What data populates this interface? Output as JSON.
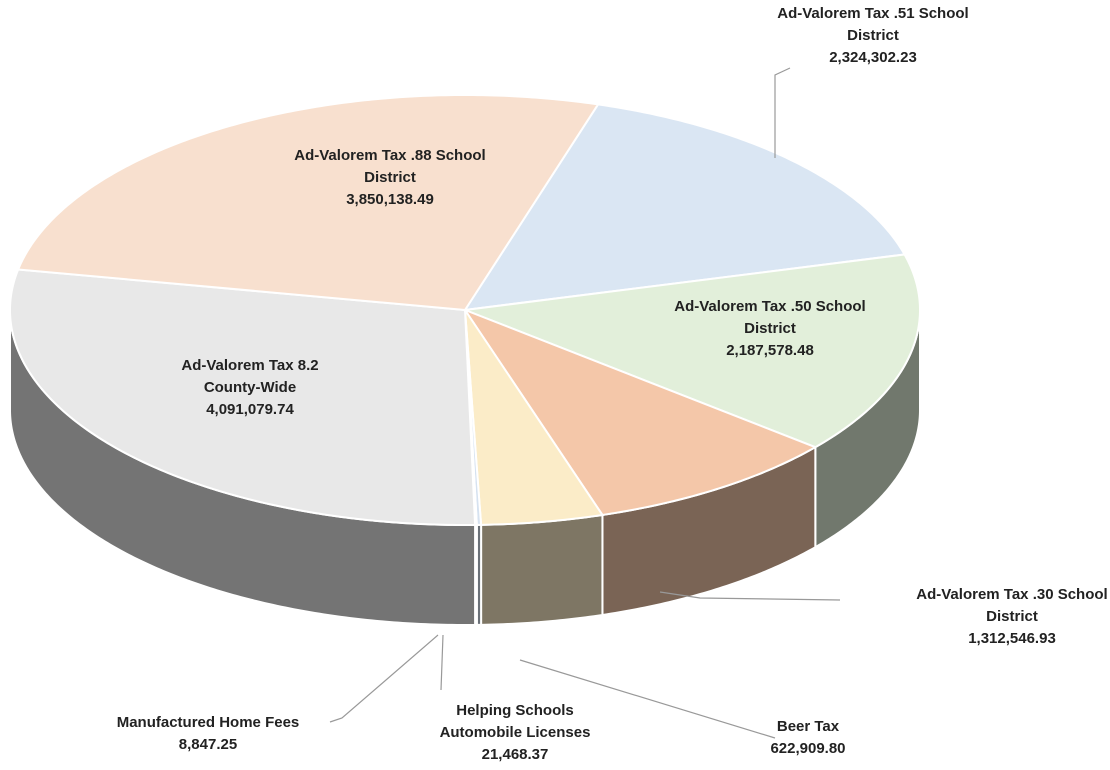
{
  "chart_data": {
    "type": "pie",
    "categories": [
      "Ad-Valorem Tax .51 School District",
      "Ad-Valorem Tax .50 School District",
      "Ad-Valorem Tax .30 School District",
      "Beer Tax",
      "Helping Schools Automobile Licenses",
      "Manufactured Home Fees",
      "Ad-Valorem Tax 8.2 County-Wide",
      "Ad-Valorem Tax .88 School District"
    ],
    "values": [
      2324302.23,
      2187578.48,
      1312546.93,
      622909.8,
      21468.37,
      8847.25,
      4091079.74,
      3850138.49
    ],
    "value_labels": [
      "2,324,302.23",
      "2,187,578.48",
      "1,312,546.93",
      "622,909.80",
      "21,468.37",
      "8,847.25",
      "4,091,079.74",
      "3,850,138.49"
    ],
    "colors": [
      "#dae6f3",
      "#e2efda",
      "#f4c7a9",
      "#fbecc8",
      "#d6e2f0",
      "#dedede",
      "#e8e8e8",
      "#f8e0cf"
    ]
  }
}
